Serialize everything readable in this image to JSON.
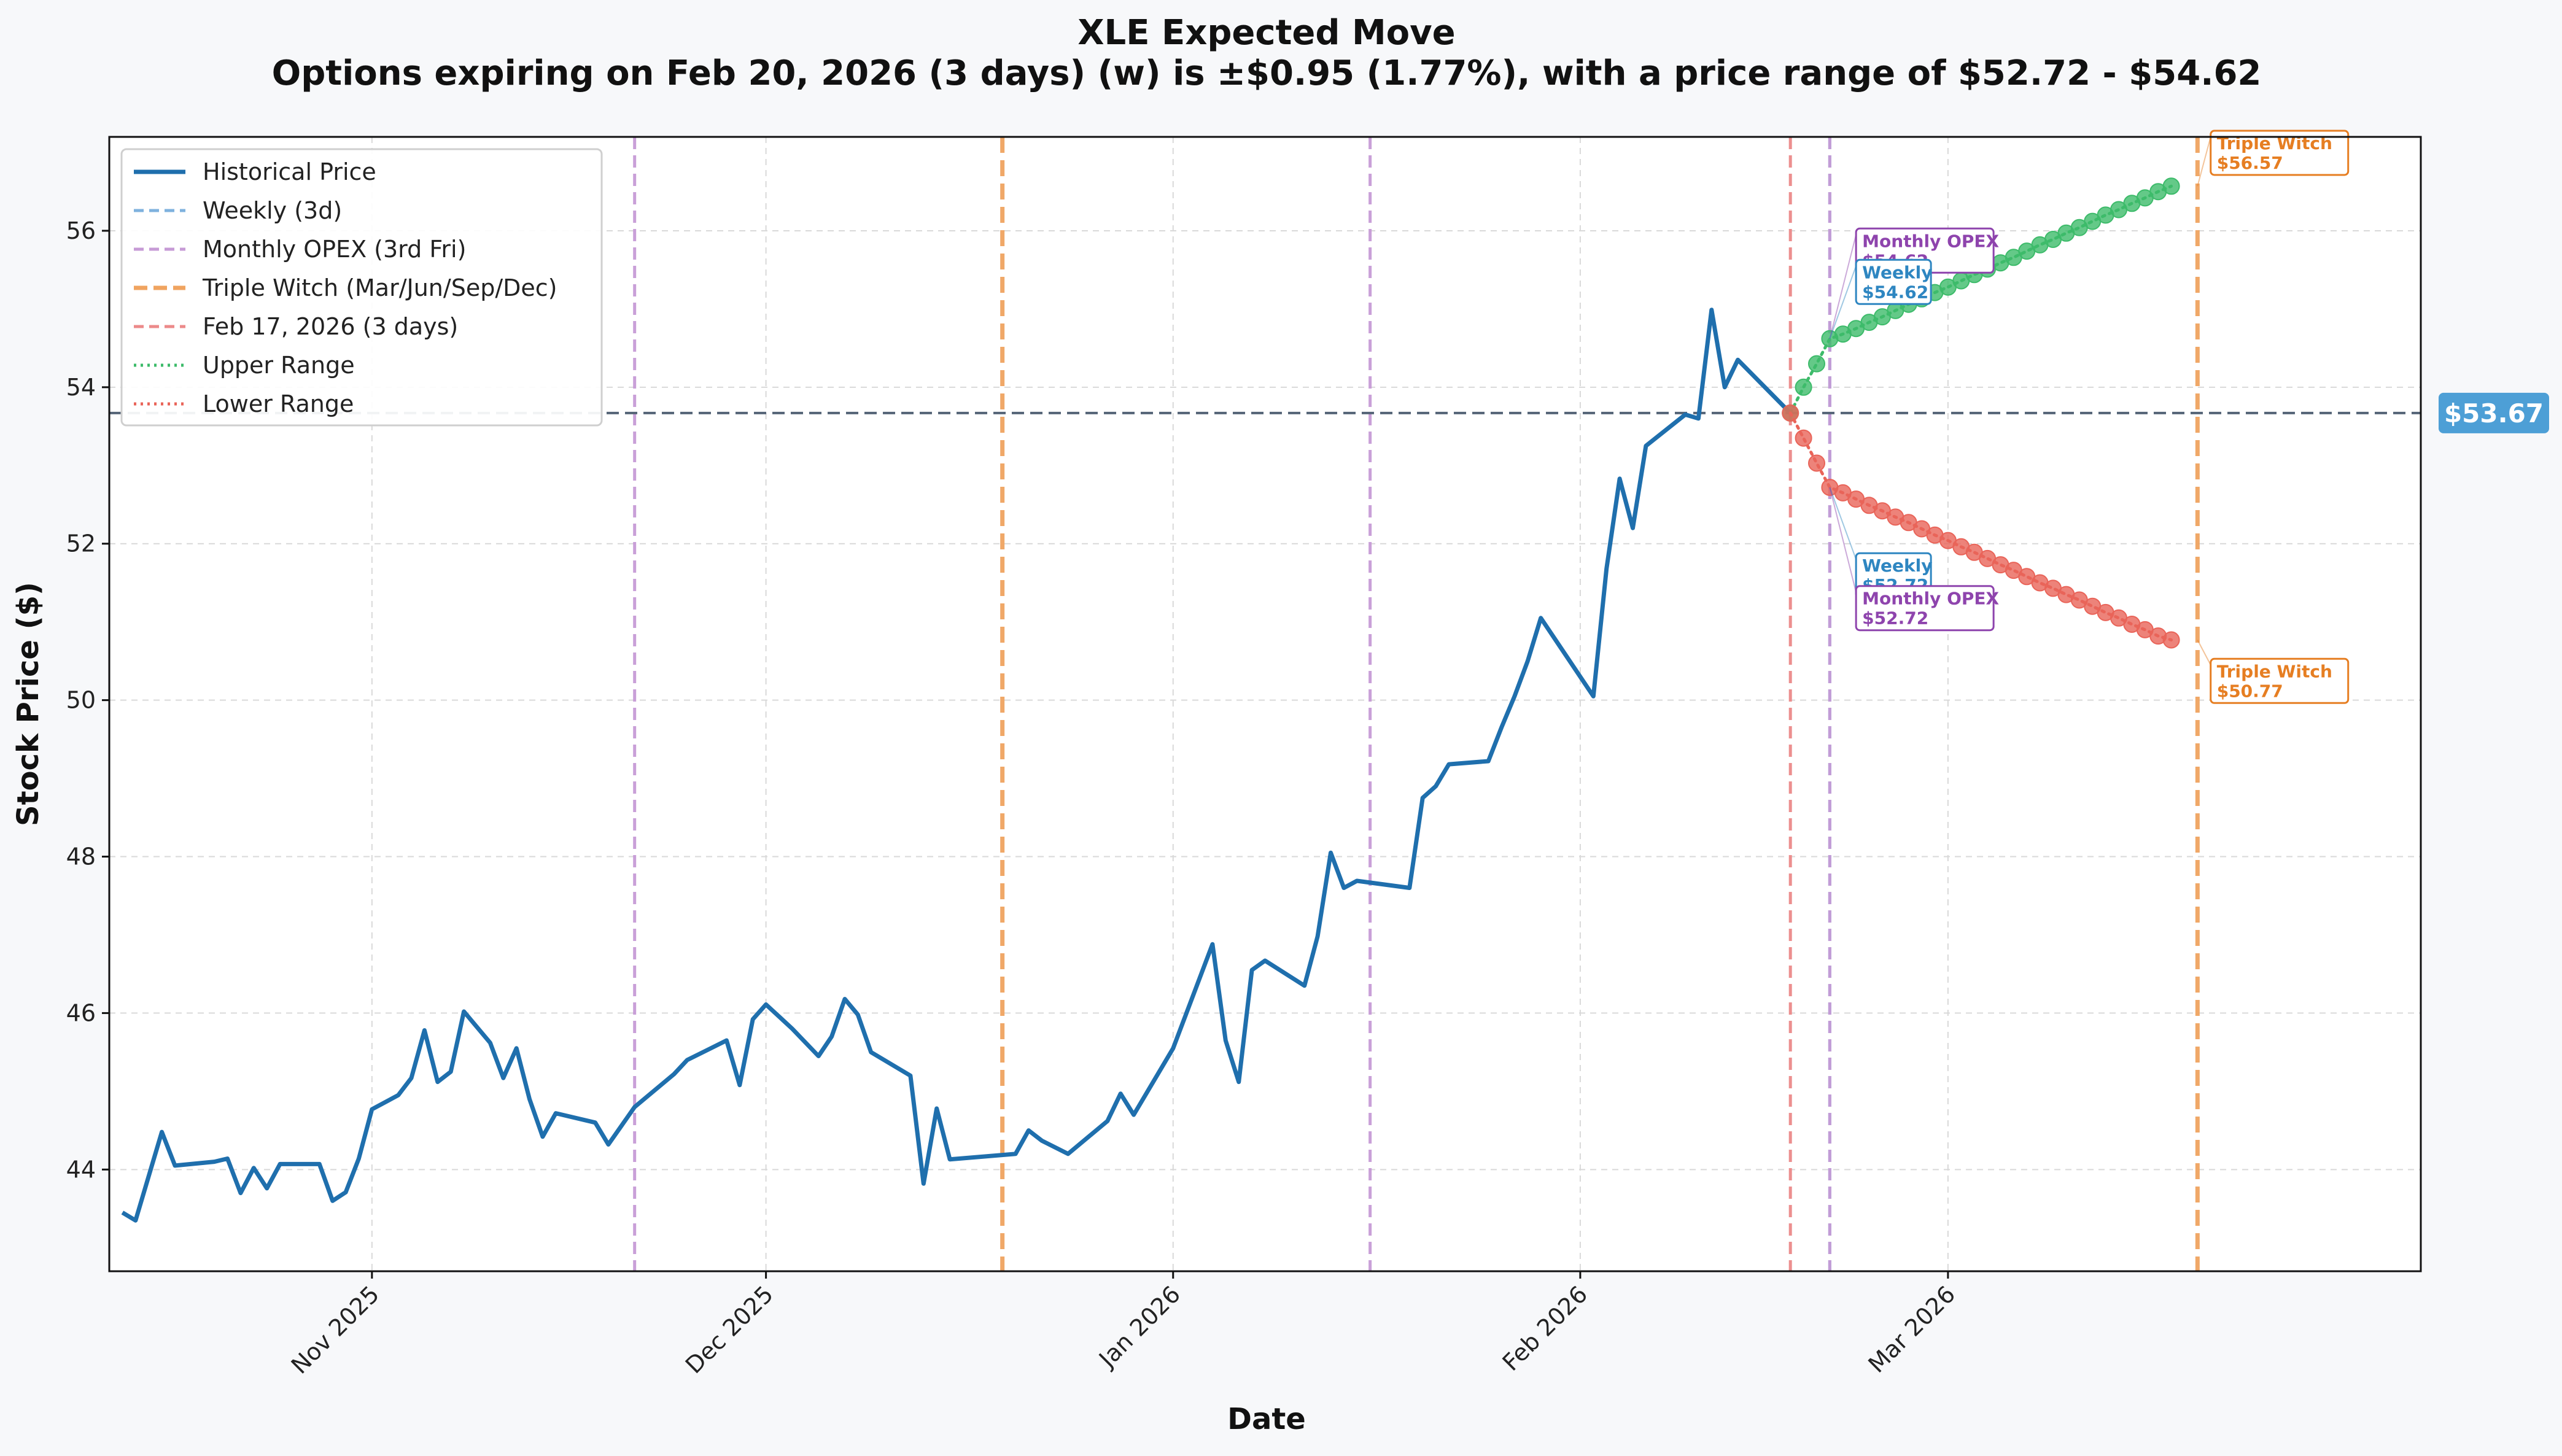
{
  "title": "XLE Expected Move",
  "subtitle": "Options expiring on Feb 20, 2026 (3 days) (w) is ±$0.95 (1.77%), with a price range of $52.72 - $54.62",
  "colors": {
    "historical": "#1f6fad",
    "weekly": "#7fb2de",
    "monthly_opex": "#c79bd6",
    "triple_witch": "#f0a460",
    "current_date": "#ec8a8a",
    "upper": "#3dbb6a",
    "lower": "#e96459",
    "current_price": "#556477",
    "current_price_badge": "#4d9fd6",
    "ann_purple": "#8e44ad",
    "ann_blue": "#2e86c1",
    "ann_orange": "#e67e22"
  },
  "chart_data": {
    "type": "line",
    "title": "XLE Expected Move",
    "subtitle": "Options expiring on Feb 20, 2026 (3 days) (w) is ±$0.95 (1.77%), with a price range of $52.72 - $54.62",
    "xlabel": "Date",
    "ylabel": "Stock Price ($)",
    "xlim": [
      "2025-10-12",
      "2026-04-06"
    ],
    "ylim": [
      42.7,
      57.2
    ],
    "grid": true,
    "legend_position": "upper-left",
    "x_ticks": [
      {
        "date": "2025-11-01",
        "label": "Nov 2025"
      },
      {
        "date": "2025-12-01",
        "label": "Dec 2025"
      },
      {
        "date": "2026-01-01",
        "label": "Jan 2026"
      },
      {
        "date": "2026-02-01",
        "label": "Feb 2026"
      },
      {
        "date": "2026-03-01",
        "label": "Mar 2026"
      }
    ],
    "y_ticks": [
      44,
      46,
      48,
      50,
      52,
      54,
      56
    ],
    "legend": [
      {
        "label": "Historical Price",
        "style": "solid",
        "color_key": "historical"
      },
      {
        "label": "Weekly (3d)",
        "style": "dashed",
        "color_key": "weekly"
      },
      {
        "label": "Monthly OPEX (3rd Fri)",
        "style": "dashed",
        "color_key": "monthly_opex"
      },
      {
        "label": "Triple Witch (Mar/Jun/Sep/Dec)",
        "style": "dashed-thick",
        "color_key": "triple_witch"
      },
      {
        "label": "Feb 17, 2026 (3 days)",
        "style": "dashed",
        "color_key": "current_date"
      },
      {
        "label": "Upper Range",
        "style": "dotted",
        "color_key": "upper"
      },
      {
        "label": "Lower Range",
        "style": "dotted",
        "color_key": "lower"
      }
    ],
    "current_price": {
      "value": 53.67,
      "label": "$53.67"
    },
    "vertical_lines": [
      {
        "date": "2025-11-21",
        "kind": "monthly_opex"
      },
      {
        "date": "2025-12-19",
        "kind": "triple_witch"
      },
      {
        "date": "2026-01-16",
        "kind": "monthly_opex"
      },
      {
        "date": "2026-02-17",
        "kind": "current_date"
      },
      {
        "date": "2026-02-20",
        "kind": "weekly"
      },
      {
        "date": "2026-02-20",
        "kind": "monthly_opex"
      },
      {
        "date": "2026-03-20",
        "kind": "triple_witch"
      }
    ],
    "series": [
      {
        "name": "Historical Price",
        "points": [
          [
            "2025-10-13",
            43.45
          ],
          [
            "2025-10-14",
            43.35
          ],
          [
            "2025-10-16",
            44.48
          ],
          [
            "2025-10-17",
            44.05
          ],
          [
            "2025-10-20",
            44.1
          ],
          [
            "2025-10-21",
            44.14
          ],
          [
            "2025-10-22",
            43.7
          ],
          [
            "2025-10-23",
            44.02
          ],
          [
            "2025-10-24",
            43.76
          ],
          [
            "2025-10-25",
            44.07
          ],
          [
            "2025-10-27",
            44.07
          ],
          [
            "2025-10-28",
            44.07
          ],
          [
            "2025-10-29",
            43.6
          ],
          [
            "2025-10-30",
            43.71
          ],
          [
            "2025-10-31",
            44.14
          ],
          [
            "2025-11-01",
            44.77
          ],
          [
            "2025-11-03",
            44.95
          ],
          [
            "2025-11-04",
            45.17
          ],
          [
            "2025-11-05",
            45.78
          ],
          [
            "2025-11-06",
            45.12
          ],
          [
            "2025-11-07",
            45.25
          ],
          [
            "2025-11-08",
            46.02
          ],
          [
            "2025-11-10",
            45.62
          ],
          [
            "2025-11-11",
            45.17
          ],
          [
            "2025-11-12",
            45.55
          ],
          [
            "2025-11-13",
            44.9
          ],
          [
            "2025-11-14",
            44.42
          ],
          [
            "2025-11-15",
            44.72
          ],
          [
            "2025-11-18",
            44.6
          ],
          [
            "2025-11-19",
            44.32
          ],
          [
            "2025-11-21",
            44.8
          ],
          [
            "2025-11-24",
            45.22
          ],
          [
            "2025-11-25",
            45.4
          ],
          [
            "2025-11-28",
            45.65
          ],
          [
            "2025-11-29",
            45.08
          ],
          [
            "2025-11-30",
            45.92
          ],
          [
            "2025-12-01",
            46.11
          ],
          [
            "2025-12-03",
            45.8
          ],
          [
            "2025-12-05",
            45.45
          ],
          [
            "2025-12-06",
            45.7
          ],
          [
            "2025-12-07",
            46.18
          ],
          [
            "2025-12-08",
            45.98
          ],
          [
            "2025-12-09",
            45.5
          ],
          [
            "2025-12-12",
            45.2
          ],
          [
            "2025-12-13",
            43.82
          ],
          [
            "2025-12-14",
            44.78
          ],
          [
            "2025-12-15",
            44.13
          ],
          [
            "2025-12-20",
            44.2
          ],
          [
            "2025-12-21",
            44.5
          ],
          [
            "2025-12-22",
            44.37
          ],
          [
            "2025-12-24",
            44.2
          ],
          [
            "2025-12-27",
            44.62
          ],
          [
            "2025-12-28",
            44.97
          ],
          [
            "2025-12-29",
            44.7
          ],
          [
            "2026-01-01",
            45.55
          ],
          [
            "2026-01-04",
            46.88
          ],
          [
            "2026-01-05",
            45.65
          ],
          [
            "2026-01-06",
            45.12
          ],
          [
            "2026-01-07",
            46.55
          ],
          [
            "2026-01-08",
            46.67
          ],
          [
            "2026-01-11",
            46.35
          ],
          [
            "2026-01-12",
            46.98
          ],
          [
            "2026-01-13",
            48.05
          ],
          [
            "2026-01-14",
            47.6
          ],
          [
            "2026-01-15",
            47.69
          ],
          [
            "2026-01-19",
            47.6
          ],
          [
            "2026-01-20",
            48.75
          ],
          [
            "2026-01-21",
            48.9
          ],
          [
            "2026-01-22",
            49.18
          ],
          [
            "2026-01-25",
            49.22
          ],
          [
            "2026-01-26",
            49.65
          ],
          [
            "2026-01-27",
            50.05
          ],
          [
            "2026-01-28",
            50.5
          ],
          [
            "2026-01-29",
            51.05
          ],
          [
            "2026-02-02",
            50.05
          ],
          [
            "2026-02-03",
            51.68
          ],
          [
            "2026-02-04",
            52.83
          ],
          [
            "2026-02-05",
            52.2
          ],
          [
            "2026-02-06",
            53.25
          ],
          [
            "2026-02-09",
            53.65
          ],
          [
            "2026-02-10",
            53.6
          ],
          [
            "2026-02-11",
            54.99
          ],
          [
            "2026-02-12",
            54.0
          ],
          [
            "2026-02-13",
            54.35
          ],
          [
            "2026-02-17",
            53.67
          ]
        ]
      },
      {
        "name": "Upper Range",
        "points": [
          [
            "2026-02-17",
            53.67
          ],
          [
            "2026-02-18",
            54.0
          ],
          [
            "2026-02-19",
            54.3
          ],
          [
            "2026-02-20",
            54.62
          ],
          [
            "2026-02-21",
            54.68
          ],
          [
            "2026-02-22",
            54.75
          ],
          [
            "2026-02-23",
            54.83
          ],
          [
            "2026-02-24",
            54.9
          ],
          [
            "2026-02-25",
            54.98
          ],
          [
            "2026-02-26",
            55.06
          ],
          [
            "2026-02-27",
            55.13
          ],
          [
            "2026-02-28",
            55.21
          ],
          [
            "2026-03-01",
            55.28
          ],
          [
            "2026-03-02",
            55.36
          ],
          [
            "2026-03-03",
            55.44
          ],
          [
            "2026-03-04",
            55.51
          ],
          [
            "2026-03-05",
            55.59
          ],
          [
            "2026-03-06",
            55.66
          ],
          [
            "2026-03-07",
            55.74
          ],
          [
            "2026-03-08",
            55.82
          ],
          [
            "2026-03-09",
            55.89
          ],
          [
            "2026-03-10",
            55.97
          ],
          [
            "2026-03-11",
            56.04
          ],
          [
            "2026-03-12",
            56.12
          ],
          [
            "2026-03-13",
            56.2
          ],
          [
            "2026-03-14",
            56.27
          ],
          [
            "2026-03-15",
            56.35
          ],
          [
            "2026-03-16",
            56.42
          ],
          [
            "2026-03-17",
            56.5
          ],
          [
            "2026-03-18",
            56.57
          ]
        ]
      },
      {
        "name": "Lower Range",
        "points": [
          [
            "2026-02-17",
            53.67
          ],
          [
            "2026-02-18",
            53.35
          ],
          [
            "2026-02-19",
            53.03
          ],
          [
            "2026-02-20",
            52.72
          ],
          [
            "2026-02-21",
            52.65
          ],
          [
            "2026-02-22",
            52.57
          ],
          [
            "2026-02-23",
            52.49
          ],
          [
            "2026-02-24",
            52.42
          ],
          [
            "2026-02-25",
            52.34
          ],
          [
            "2026-02-26",
            52.27
          ],
          [
            "2026-02-27",
            52.19
          ],
          [
            "2026-02-28",
            52.11
          ],
          [
            "2026-03-01",
            52.04
          ],
          [
            "2026-03-02",
            51.96
          ],
          [
            "2026-03-03",
            51.89
          ],
          [
            "2026-03-04",
            51.81
          ],
          [
            "2026-03-05",
            51.73
          ],
          [
            "2026-03-06",
            51.66
          ],
          [
            "2026-03-07",
            51.58
          ],
          [
            "2026-03-08",
            51.5
          ],
          [
            "2026-03-09",
            51.43
          ],
          [
            "2026-03-10",
            51.35
          ],
          [
            "2026-03-11",
            51.28
          ],
          [
            "2026-03-12",
            51.2
          ],
          [
            "2026-03-13",
            51.12
          ],
          [
            "2026-03-14",
            51.05
          ],
          [
            "2026-03-15",
            50.97
          ],
          [
            "2026-03-16",
            50.9
          ],
          [
            "2026-03-17",
            50.82
          ],
          [
            "2026-03-18",
            50.77
          ]
        ]
      }
    ],
    "annotations": [
      {
        "title": "Monthly OPEX",
        "value": "$54.62",
        "color_key": "ann_purple",
        "anchor_date": "2026-02-20",
        "anchor_value": 54.62,
        "box_date": "2026-02-22",
        "box_value": 55.95
      },
      {
        "title": "Weekly",
        "value": "$54.62",
        "color_key": "ann_blue",
        "anchor_date": "2026-02-20",
        "anchor_value": 54.62,
        "box_date": "2026-02-22",
        "box_value": 55.55
      },
      {
        "title": "Weekly",
        "value": "$52.72",
        "color_key": "ann_blue",
        "anchor_date": "2026-02-20",
        "anchor_value": 52.72,
        "box_date": "2026-02-22",
        "box_value": 51.8
      },
      {
        "title": "Monthly OPEX",
        "value": "$52.72",
        "color_key": "ann_purple",
        "anchor_date": "2026-02-20",
        "anchor_value": 52.72,
        "box_date": "2026-02-22",
        "box_value": 51.38
      },
      {
        "title": "Triple Witch",
        "value": "$56.57",
        "color_key": "ann_orange",
        "anchor_date": "2026-03-20",
        "anchor_value": 56.57,
        "box_date": "2026-03-21",
        "box_value": 57.2
      },
      {
        "title": "Triple Witch",
        "value": "$50.77",
        "color_key": "ann_orange",
        "anchor_date": "2026-03-20",
        "anchor_value": 50.77,
        "box_date": "2026-03-21",
        "box_value": 50.45
      }
    ]
  }
}
